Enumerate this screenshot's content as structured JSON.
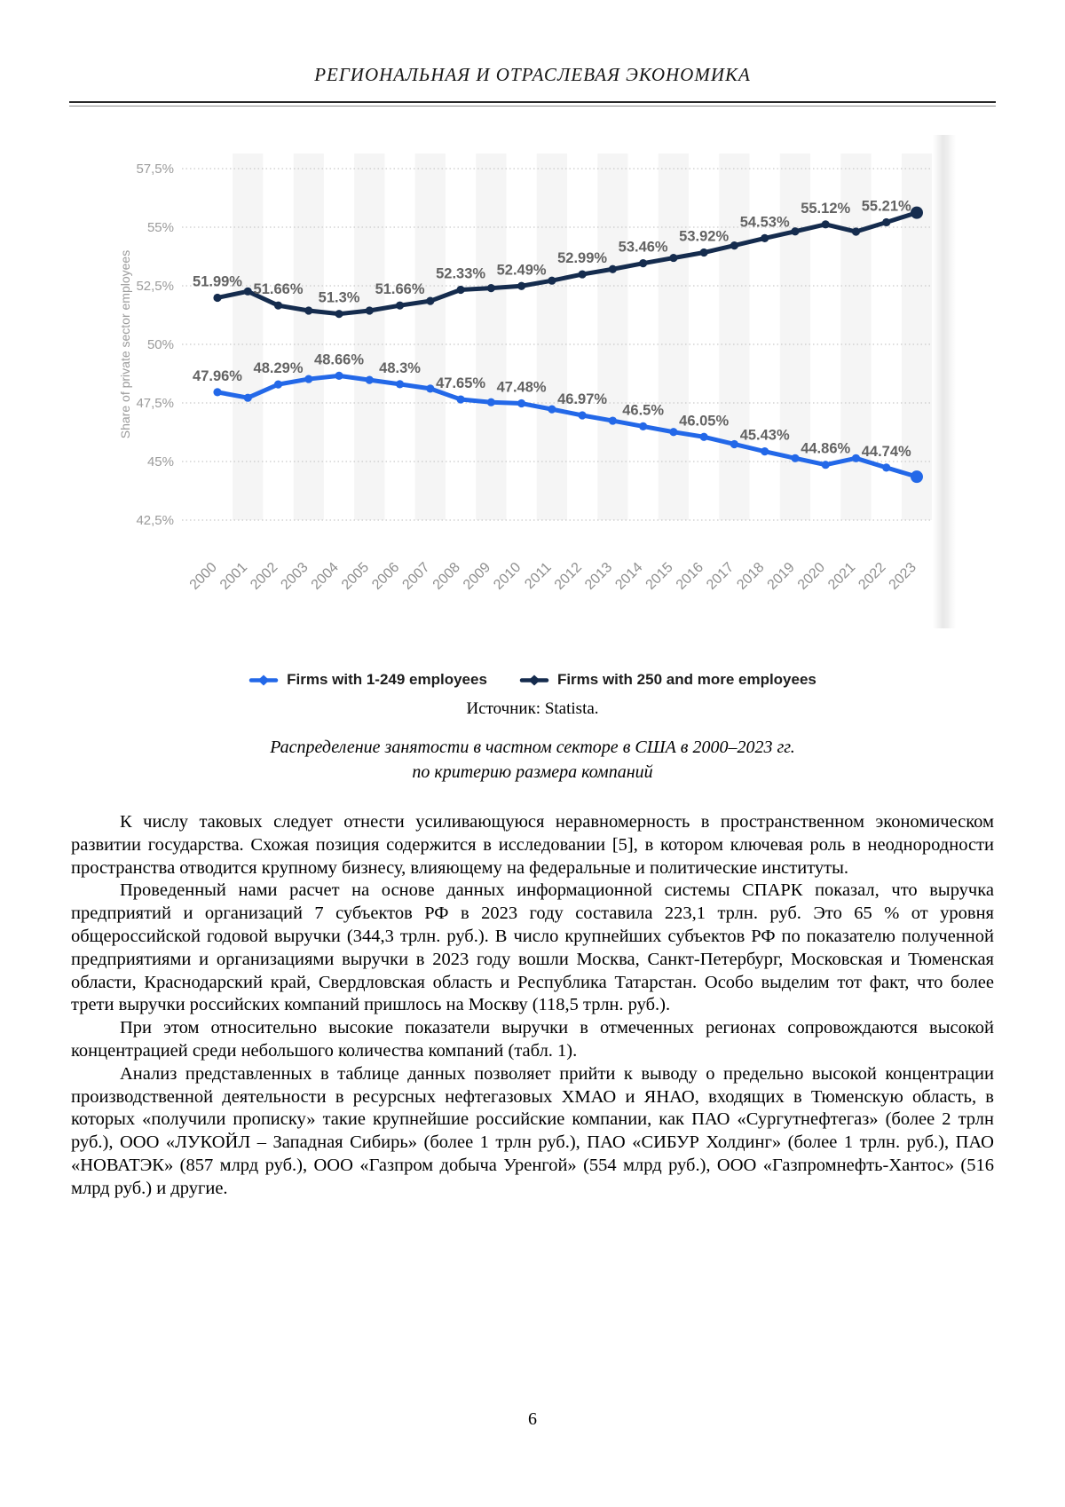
{
  "header": {
    "title": "РЕГИОНАЛЬНАЯ И ОТРАСЛЕВАЯ ЭКОНОМИКА"
  },
  "chart_data": {
    "type": "line",
    "x": [
      2000,
      2001,
      2002,
      2003,
      2004,
      2005,
      2006,
      2007,
      2008,
      2009,
      2010,
      2011,
      2012,
      2013,
      2014,
      2015,
      2016,
      2017,
      2018,
      2019,
      2020,
      2021,
      2022,
      2023
    ],
    "series": [
      {
        "name": "Firms with 1-249 employees",
        "color": "#2368e8",
        "values": [
          47.96,
          47.72,
          48.29,
          48.52,
          48.66,
          48.48,
          48.3,
          48.11,
          47.65,
          47.53,
          47.48,
          47.23,
          46.97,
          46.74,
          46.5,
          46.26,
          46.05,
          45.74,
          45.43,
          45.14,
          44.86,
          45.14,
          44.74,
          44.35
        ]
      },
      {
        "name": "Firms with 250 and more employees",
        "color": "#152c4e",
        "values": [
          51.99,
          52.26,
          51.66,
          51.44,
          51.3,
          51.44,
          51.66,
          51.85,
          52.33,
          52.4,
          52.49,
          52.72,
          52.99,
          53.21,
          53.46,
          53.69,
          53.92,
          54.22,
          54.53,
          54.82,
          55.12,
          54.81,
          55.21,
          55.62
        ]
      }
    ],
    "label_years": [
      2000,
      2002,
      2004,
      2006,
      2008,
      2010,
      2012,
      2014,
      2016,
      2018,
      2020,
      2022
    ],
    "ylabel": "Share of private sector employees",
    "yticks": [
      {
        "label": "57,5%",
        "value": 57.5
      },
      {
        "label": "55%",
        "value": 55
      },
      {
        "label": "52,5%",
        "value": 52.5
      },
      {
        "label": "50%",
        "value": 50
      },
      {
        "label": "47,5%",
        "value": 47.5
      },
      {
        "label": "45%",
        "value": 45
      },
      {
        "label": "42,5%",
        "value": 42.5
      }
    ],
    "ylim": [
      42.5,
      57.5
    ],
    "grid": "horizontal-dotted",
    "legend_position": "bottom"
  },
  "source": {
    "text": "Источник: Statista."
  },
  "caption": {
    "line1": "Распределение занятости в частном секторе в США в 2000–2023 гг.",
    "line2": "по критерию размера компаний"
  },
  "body": {
    "paragraphs": [
      "К числу таковых следует отнести усиливающуюся неравномерность в пространственном экономическом развитии государства. Схожая позиция содержится в исследовании [5], в котором ключевая роль в неоднородности пространства отводится крупному бизнесу, влияющему на федеральные и политические институты.",
      "Проведенный нами расчет на основе данных информационной системы СПАРК показал, что выручка предприятий и организаций 7 субъектов РФ в 2023 году составила 223,1 трлн. руб. Это 65 % от уровня общероссийской годовой выручки (344,3 трлн. руб.). В число крупнейших субъектов РФ по показателю полученной предприятиями и организациями выручки в 2023 году вошли Москва, Санкт-Петербург, Московская и Тюменская области, Краснодарский край, Свердловская область и Республика Татарстан. Особо выделим тот факт, что более трети выручки российских компаний пришлось на Москву (118,5 трлн. руб.).",
      "При этом относительно высокие показатели выручки в отмеченных регионах сопровождаются высокой концентрацией среди небольшого количества компаний (табл. 1).",
      "Анализ представленных в таблице данных позволяет прийти к выводу о предельно высокой концентрации производственной деятельности в ресурсных нефтегазовых ХМАО и ЯНАО, входящих в Тюменскую область, в которых «получили прописку» такие крупнейшие российские компании, как ПАО «Сургутнефтегаз» (более 2 трлн руб.), ООО «ЛУКОЙЛ – Западная Сибирь» (более 1 трлн руб.), ПАО «СИБУР Холдинг» (более 1 трлн. руб.), ПАО «НОВАТЭК» (857 млрд руб.), ООО «Газпром добыча Уренгой» (554 млрд руб.), ООО «Газпромнефть-Хантос» (516 млрд руб.) и другие."
    ]
  },
  "footer": {
    "page_number": "6"
  }
}
